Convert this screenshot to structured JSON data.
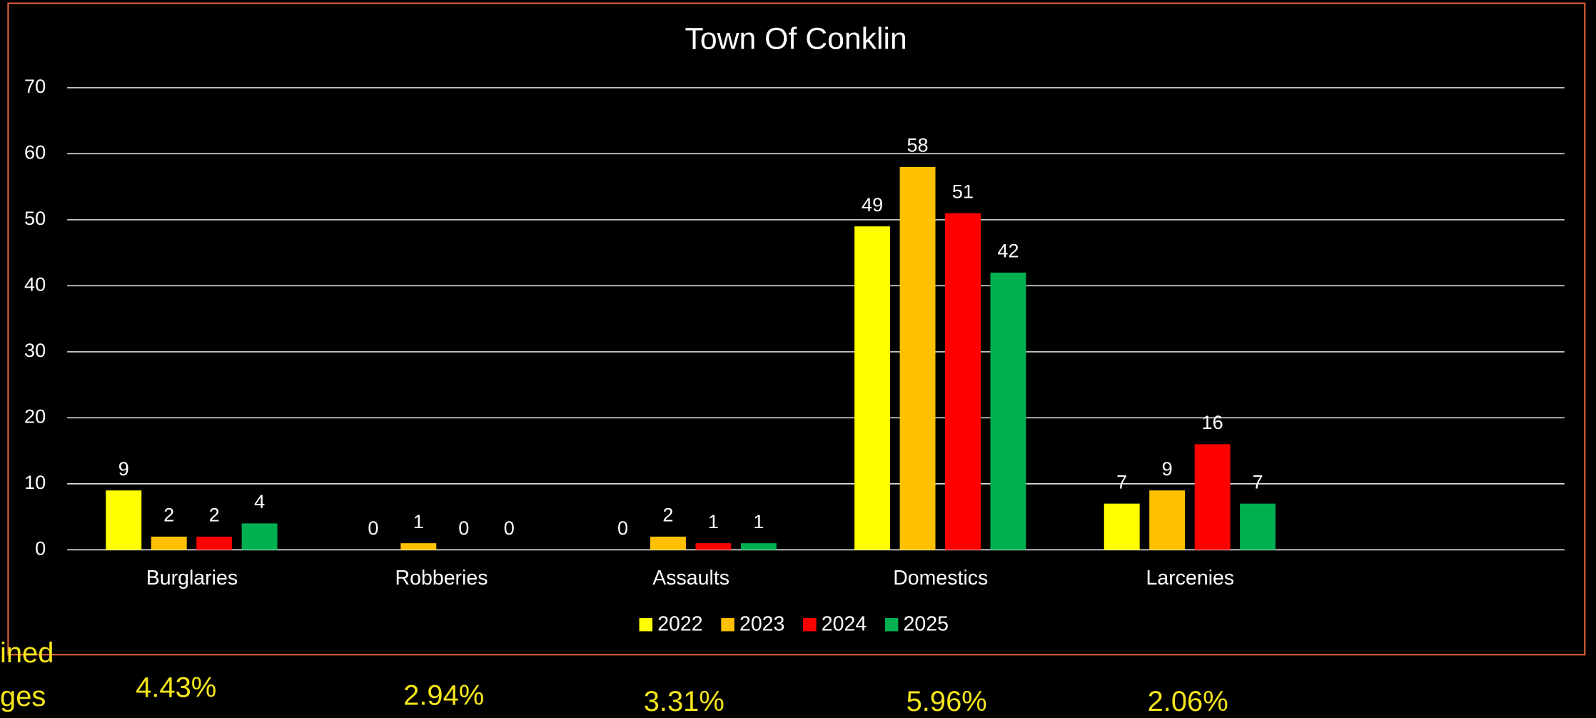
{
  "chart_data": {
    "type": "bar",
    "title": "Town Of Conklin",
    "categories": [
      "Burglaries",
      "Robberies",
      "Assaults",
      "Domestics",
      "Larcenies",
      null
    ],
    "series": [
      {
        "name": "2022",
        "color": "#ffff00",
        "values": [
          9,
          0,
          0,
          49,
          7,
          null
        ]
      },
      {
        "name": "2023",
        "color": "#ffc000",
        "values": [
          2,
          1,
          2,
          58,
          9,
          null
        ]
      },
      {
        "name": "2024",
        "color": "#ff0000",
        "values": [
          2,
          0,
          1,
          51,
          16,
          null
        ]
      },
      {
        "name": "2025",
        "color": "#00b050",
        "values": [
          4,
          0,
          1,
          42,
          7,
          null
        ]
      }
    ],
    "ylim": [
      0,
      70
    ],
    "yticks": [
      0,
      10,
      20,
      30,
      40,
      50,
      60,
      70
    ],
    "grid": true,
    "legend": "bottom"
  },
  "footer": {
    "label_lines": [
      "ined",
      "ges"
    ],
    "percentages": [
      "4.43%",
      "2.94%",
      "3.31%",
      "5.96%",
      "2.06%"
    ]
  }
}
